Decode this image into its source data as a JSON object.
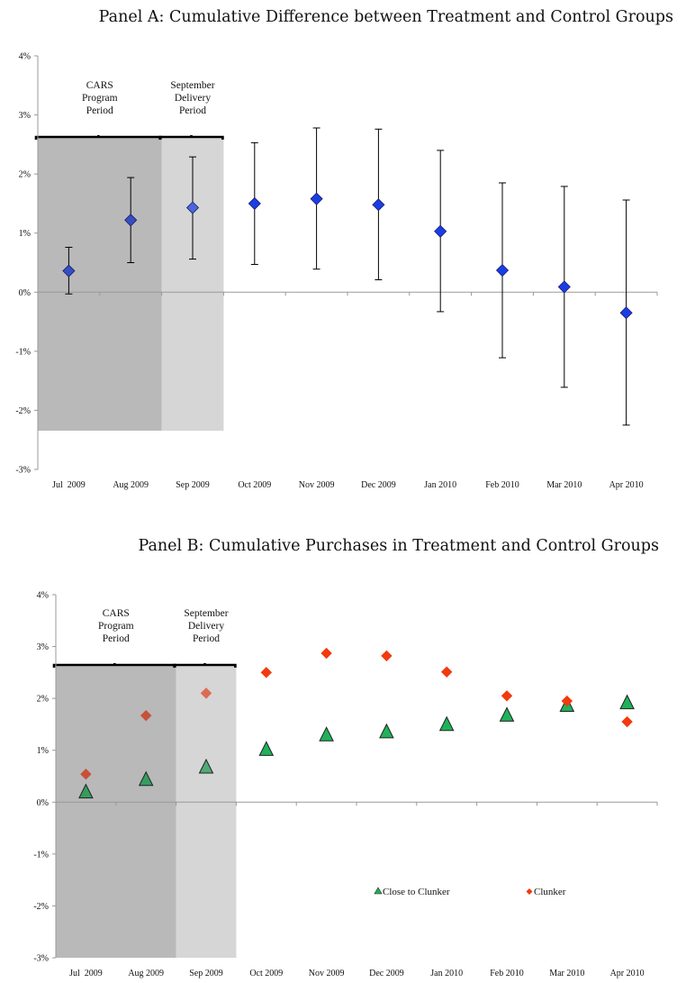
{
  "chart_data": [
    {
      "type": "scatter",
      "title": "Panel A: Cumulative Difference between Treatment and Control Groups",
      "categories": [
        "Jul  2009",
        "Aug 2009",
        "Sep 2009",
        "Oct 2009",
        "Nov 2009",
        "Dec 2009",
        "Jan 2010",
        "Feb 2010",
        "Mar 2010",
        "Apr 2010"
      ],
      "yticks": [
        "4%",
        "3%",
        "2%",
        "1%",
        "0%",
        "-1%",
        "-2%",
        "-3%"
      ],
      "ylim": [
        -3,
        4
      ],
      "series": [
        {
          "values": [
            0.36,
            1.22,
            1.43,
            1.5,
            1.58,
            1.48,
            1.03,
            0.37,
            0.09,
            -0.35
          ],
          "lower": [
            -0.03,
            0.5,
            0.56,
            0.47,
            0.39,
            0.21,
            -0.33,
            -1.11,
            -1.61,
            -2.25
          ],
          "upper": [
            0.76,
            1.94,
            2.29,
            2.53,
            2.78,
            2.76,
            2.4,
            1.85,
            1.79,
            1.56
          ],
          "color": "#1a3ee6"
        }
      ],
      "regions": [
        {
          "label_lines": [
            "CARS",
            "Program",
            "Period"
          ],
          "from": 0,
          "to": 2
        },
        {
          "label_lines": [
            "September",
            "Delivery",
            "Period"
          ],
          "from": 2,
          "to": 3
        }
      ],
      "grid": false
    },
    {
      "type": "scatter",
      "title": "Panel B: Cumulative Purchases in Treatment and Control Groups",
      "categories": [
        "Jul  2009",
        "Aug 2009",
        "Sep 2009",
        "Oct 2009",
        "Nov 2009",
        "Dec 2009",
        "Jan 2010",
        "Feb 2010",
        "Mar 2010",
        "Apr 2010"
      ],
      "yticks": [
        "4%",
        "3%",
        "2%",
        "1%",
        "0%",
        "-1%",
        "-2%",
        "-3%"
      ],
      "ylim": [
        -3,
        4
      ],
      "series": [
        {
          "name": "Close to Clunker",
          "marker": "triangle",
          "color": "#1fb25a",
          "values": [
            0.18,
            0.42,
            0.66,
            1.0,
            1.28,
            1.34,
            1.48,
            1.66,
            1.85,
            1.9
          ]
        },
        {
          "name": "Clunker",
          "marker": "diamond",
          "color": "#f23a0e",
          "values": [
            0.54,
            1.67,
            2.1,
            2.5,
            2.87,
            2.82,
            2.51,
            2.05,
            1.95,
            1.55
          ]
        }
      ],
      "regions": [
        {
          "label_lines": [
            "CARS",
            "Program",
            "Period"
          ],
          "from": 0,
          "to": 2
        },
        {
          "label_lines": [
            "September",
            "Delivery",
            "Period"
          ],
          "from": 2,
          "to": 3
        }
      ],
      "legend": "bottom-right",
      "grid": false
    }
  ]
}
